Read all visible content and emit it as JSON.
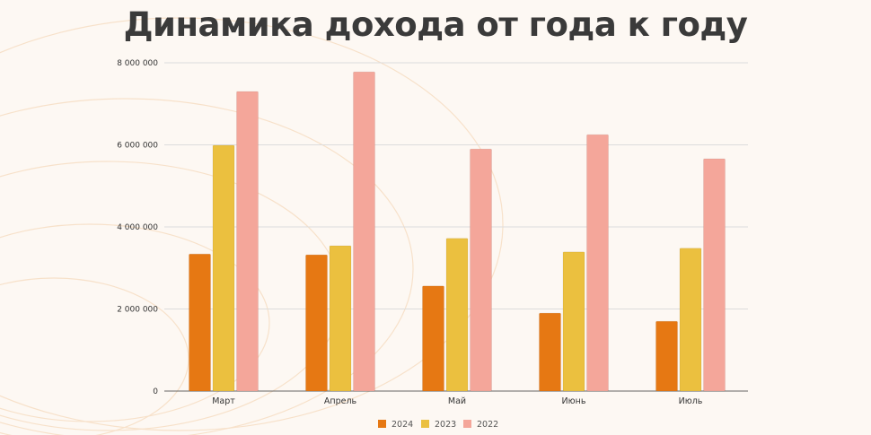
{
  "chart_data": {
    "type": "bar",
    "title": "Динамика дохода от года к году",
    "xlabel": "",
    "ylabel": "",
    "categories": [
      "Март",
      "Апрель",
      "Май",
      "Июнь",
      "Июль"
    ],
    "series": [
      {
        "name": "2024",
        "color": "#e67813",
        "values": [
          3340000,
          3320000,
          2560000,
          1900000,
          1700000
        ]
      },
      {
        "name": "2023",
        "color": "#ebc03f",
        "values": [
          5990000,
          3540000,
          3720000,
          3390000,
          3480000
        ]
      },
      {
        "name": "2022",
        "color": "#f4a69a",
        "values": [
          7300000,
          7780000,
          5900000,
          6250000,
          5660000
        ]
      }
    ],
    "ylim": [
      0,
      8000000
    ],
    "yticks": [
      0,
      2000000,
      4000000,
      6000000,
      8000000
    ],
    "ytick_labels": [
      "0",
      "2 000 000",
      "4 000 000",
      "6 000 000",
      "8 000 000"
    ],
    "grid": true,
    "legend_position": "bottom"
  }
}
